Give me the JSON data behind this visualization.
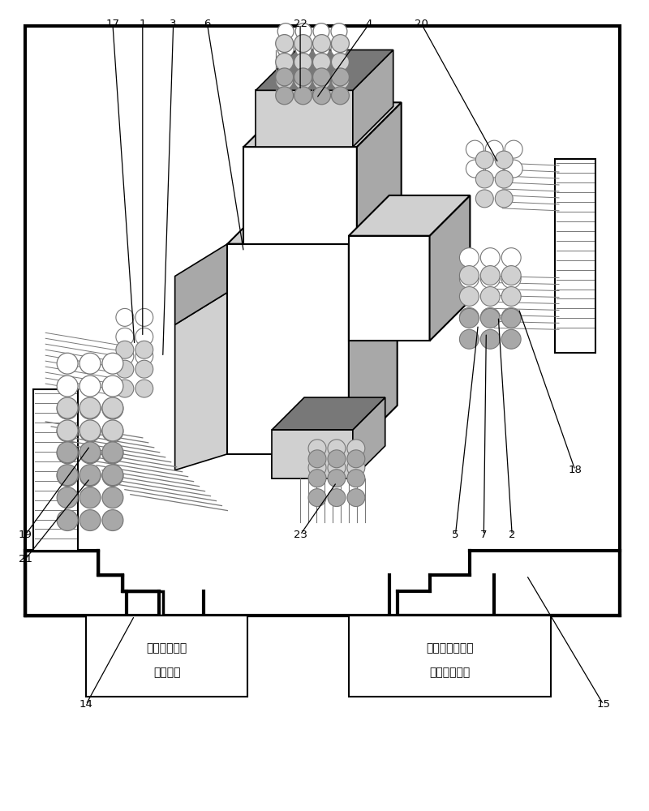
{
  "bg_color": "#ffffff",
  "line_color": "#000000",
  "gray_light": "#d0d0d0",
  "gray_mid": "#a8a8a8",
  "gray_dark": "#787878",
  "gray_very_dark": "#606060",
  "fig_width": 8.0,
  "fig_height": 10.0,
  "box1_text_line1": "智能调制矩阵",
  "box1_text_line2": "功率光源",
  "box2_text_line1": "三维电磁场光学",
  "box2_text_line2": "信息处理单元"
}
